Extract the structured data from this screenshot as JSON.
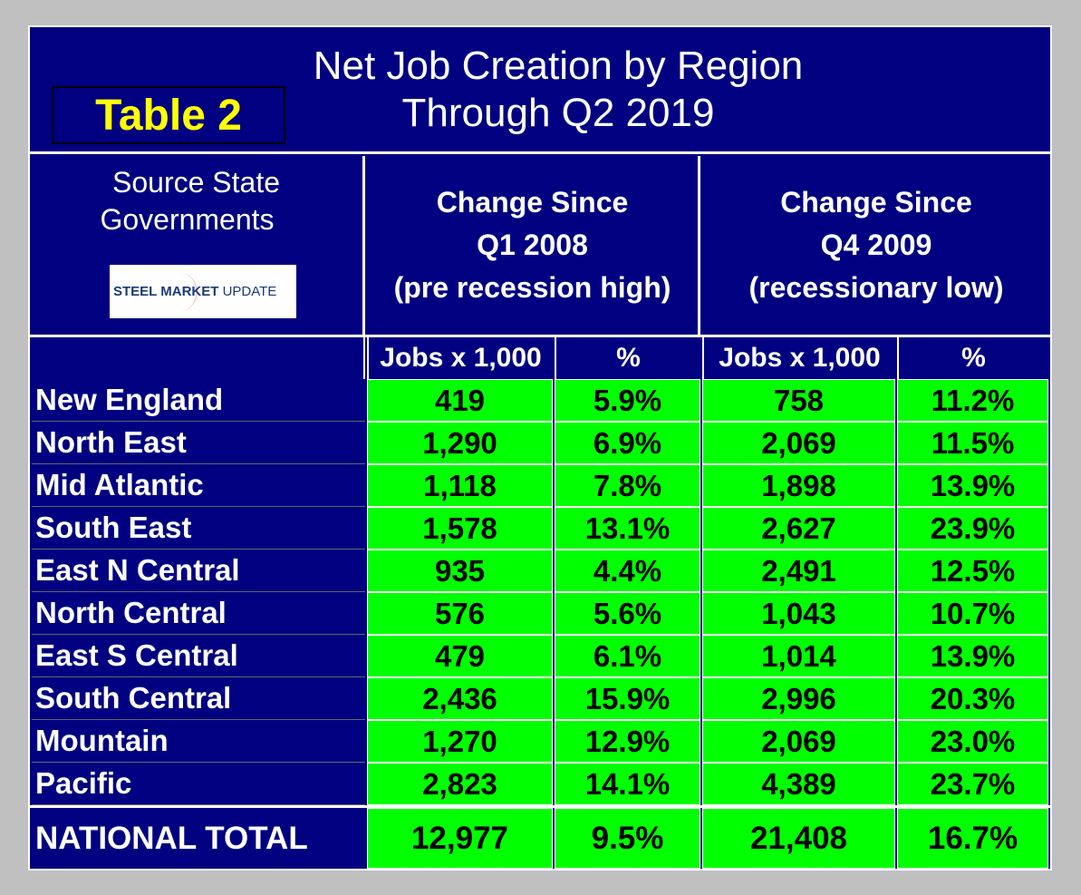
{
  "title": {
    "line1": "Net Job Creation by Region",
    "line2": "Through Q2 2019"
  },
  "badge": "Table 2",
  "source": {
    "line1": "Source State",
    "line2": "Governments"
  },
  "logo": {
    "bold": "STEEL MARKET",
    "light": "UPDATE"
  },
  "groups": [
    {
      "lines": [
        "Change Since",
        "Q1 2008",
        "(pre recession high)"
      ]
    },
    {
      "lines": [
        "Change Since",
        "Q4 2009",
        "(recessionary low)"
      ]
    }
  ],
  "columns": [
    "Jobs x 1,000",
    "%",
    "Jobs x 1,000",
    "%"
  ],
  "rows": [
    [
      "New England",
      "419",
      "5.9%",
      "758",
      "11.2%"
    ],
    [
      "North East",
      "1,290",
      "6.9%",
      "2,069",
      "11.5%"
    ],
    [
      "Mid Atlantic",
      "1,118",
      "7.8%",
      "1,898",
      "13.9%"
    ],
    [
      "South East",
      "1,578",
      "13.1%",
      "2,627",
      "23.9%"
    ],
    [
      "East N Central",
      "935",
      "4.4%",
      "2,491",
      "12.5%"
    ],
    [
      "North Central",
      "576",
      "5.6%",
      "1,043",
      "10.7%"
    ],
    [
      "East S Central",
      "479",
      "6.1%",
      "1,014",
      "13.9%"
    ],
    [
      "South Central",
      "2,436",
      "15.9%",
      "2,996",
      "20.3%"
    ],
    [
      "Mountain",
      "1,270",
      "12.9%",
      "2,069",
      "23.0%"
    ],
    [
      "Pacific",
      "2,823",
      "14.1%",
      "4,389",
      "23.7%"
    ]
  ],
  "total": [
    "NATIONAL TOTAL",
    "12,977",
    "9.5%",
    "21,408",
    "16.7%"
  ]
}
